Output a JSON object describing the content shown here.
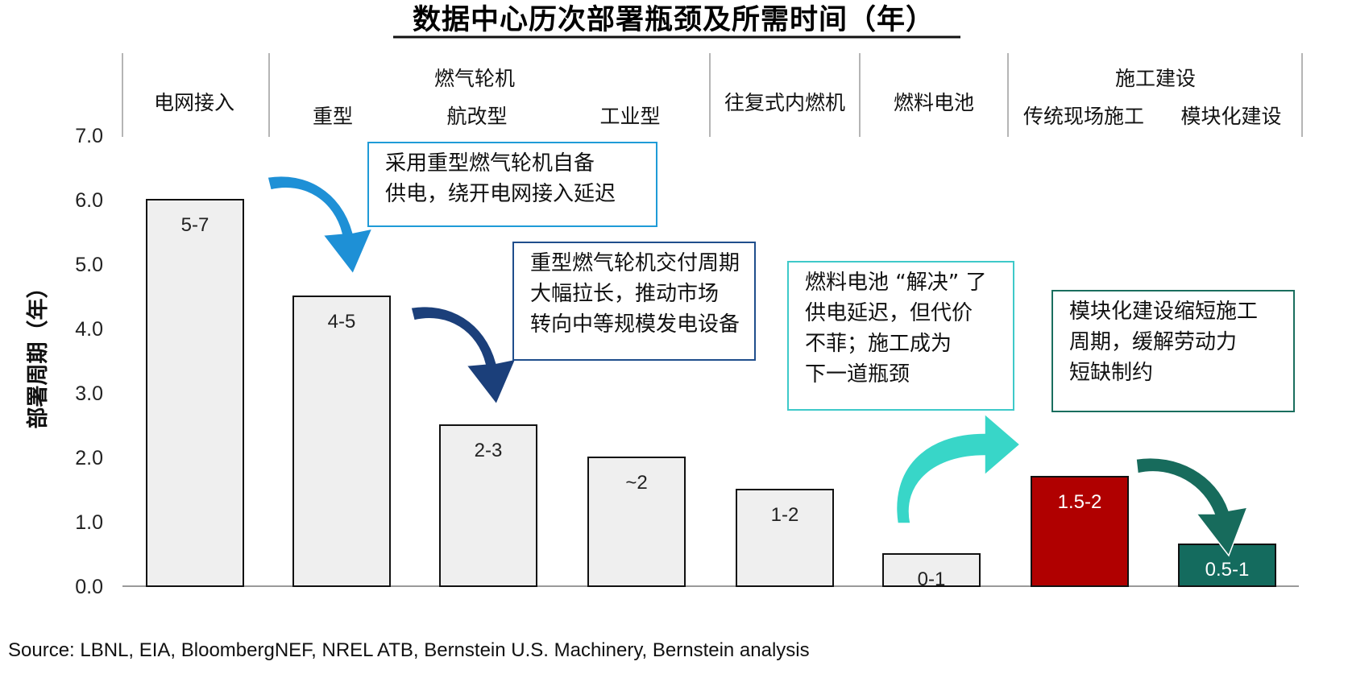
{
  "title": "数据中心历次部署瓶颈及所需时间（年）",
  "source": "Source: LBNL, EIA, BloombergNEF, NREL ATB, Bernstein U.S. Machinery, Bernstein analysis",
  "header": {
    "groups": [
      {
        "label": "电网接入",
        "sub": []
      },
      {
        "label": "燃气轮机",
        "sub": [
          "重型",
          "航改型",
          "工业型"
        ]
      },
      {
        "label": "往复式内燃机",
        "sub": []
      },
      {
        "label": "燃料电池",
        "sub": []
      },
      {
        "label": "施工建设",
        "sub": [
          "传统现场施工",
          "模块化建设"
        ]
      }
    ]
  },
  "callouts": [
    {
      "text": "采用重型燃气轮机自备\n供电，绕开电网接入延迟",
      "color": "#1f9bd7"
    },
    {
      "text": "重型燃气轮机交付周期\n大幅拉长，推动市场\n转向中等规模发电设备",
      "color": "#1f4e8c"
    },
    {
      "text": "燃料电池 “解决” 了\n供电延迟，但代价\n不菲；施工成为\n下一道瓶颈",
      "color": "#3ec9c9"
    },
    {
      "text": "模块化建设缩短施工\n周期，缓解劳动力\n短缺制约",
      "color": "#1a6e5e"
    }
  ],
  "arrow_colors": [
    "#1e90d6",
    "#1b3f7a",
    "#38d6c8",
    "#176b5c"
  ],
  "chart_data": {
    "type": "bar",
    "categories": [
      "电网接入",
      "重型",
      "航改型",
      "工业型",
      "往复式内燃机",
      "燃料电池",
      "传统现场施工",
      "模块化建设"
    ],
    "values": [
      6.0,
      4.5,
      2.5,
      2.0,
      1.5,
      0.5,
      1.7,
      0.65
    ],
    "data_labels": [
      "5-7",
      "4-5",
      "2-3",
      "~2",
      "1-2",
      "0-1",
      "1.5-2",
      "0.5-1"
    ],
    "bar_colors": [
      "#efefef",
      "#efefef",
      "#efefef",
      "#efefef",
      "#efefef",
      "#efefef",
      "#b00000",
      "#146b5e"
    ],
    "label_colors": [
      "#222222",
      "#222222",
      "#222222",
      "#222222",
      "#222222",
      "#222222",
      "#ffffff",
      "#ffffff"
    ],
    "ylabel": "部署周期（年）",
    "ylim": [
      0,
      7
    ],
    "yticks": [
      "0.0",
      "1.0",
      "2.0",
      "3.0",
      "4.0",
      "5.0",
      "6.0",
      "7.0"
    ],
    "grid": false,
    "legend": "none"
  }
}
